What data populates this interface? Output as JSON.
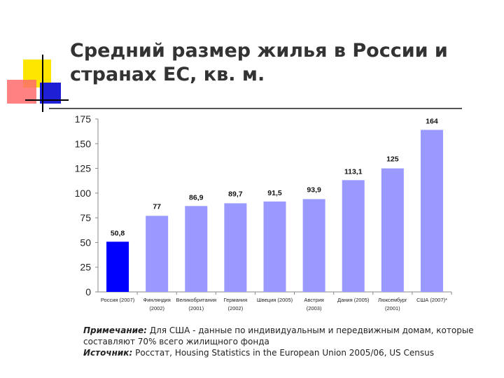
{
  "slide": {
    "title_line1": "Средний размер жилья в России и",
    "title_line2": "странах ЕС, кв. м.",
    "note_label": "Примечание:",
    "note_text": "Для США - данные по индивидуальным и передвижным домам, которые составляют 70% всего жилищного фонда",
    "source_label": "Источник:",
    "source_text": "Росстат, Housing Statistics in the European Union 2005/06, US Census"
  },
  "colors": {
    "highlight_bar": "#0000ff",
    "bar": "#9999ff",
    "deco_yellow": "#ffe600",
    "deco_red": "#ff6b6b",
    "deco_blue": "#1f1fd6",
    "deco_line": "#000000"
  },
  "chart_data": {
    "type": "bar",
    "title": "",
    "xlabel": "",
    "ylabel": "",
    "ylim": [
      0,
      175
    ],
    "yticks": [
      "0",
      "25",
      "50",
      "75",
      "100",
      "125",
      "150",
      "175"
    ],
    "grid": false,
    "categories": [
      [
        "Россия (2007)",
        ""
      ],
      [
        "Финляндия",
        "(2002)"
      ],
      [
        "Великобритания",
        "(2001)"
      ],
      [
        "Германия",
        "(2002)"
      ],
      [
        "Швеция (2005)",
        ""
      ],
      [
        "Австрия",
        "(2003)"
      ],
      [
        "Дания (2005)",
        ""
      ],
      [
        "Люксембург",
        "(2001)"
      ],
      [
        "США (2007)*",
        ""
      ]
    ],
    "values": [
      50.8,
      77,
      86.9,
      89.7,
      91.5,
      93.9,
      113.1,
      125,
      164
    ],
    "value_labels": [
      "50,8",
      "77",
      "86,9",
      "89,7",
      "91,5",
      "93,9",
      "113,1",
      "125",
      "164"
    ],
    "highlight_index": 0
  }
}
